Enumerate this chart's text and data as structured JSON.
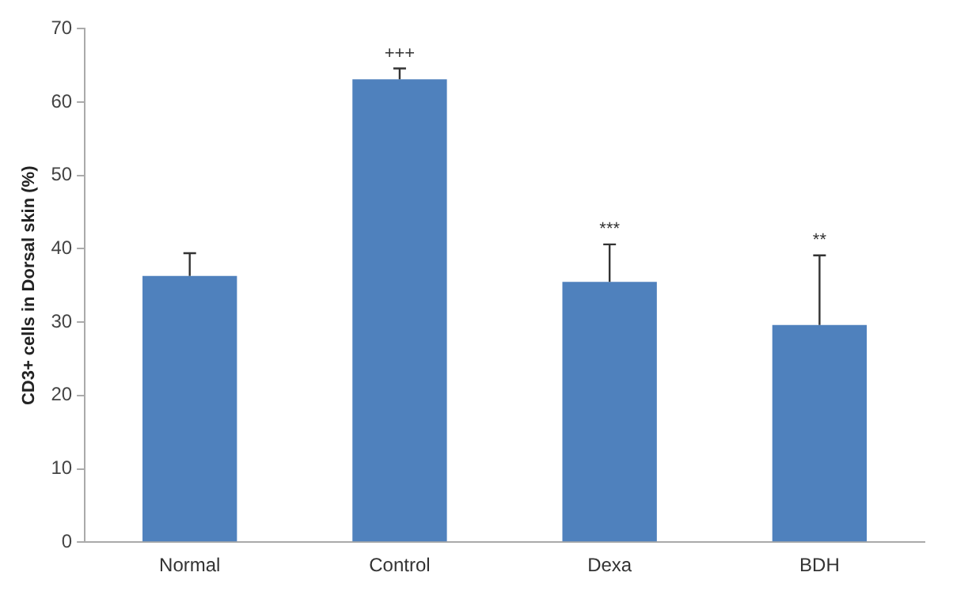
{
  "chart_data": {
    "type": "bar",
    "ylabel": "CD3+ cells in Dorsal skin (%)",
    "categories": [
      "Normal",
      "Control",
      "Dexa",
      "BDH"
    ],
    "values": [
      36.3,
      63.1,
      35.5,
      29.6
    ],
    "color": "#4f81bd",
    "errors": [
      [
        36.3,
        39.4
      ],
      [
        63.1,
        64.6
      ],
      [
        35.5,
        40.6
      ],
      [
        29.6,
        39.1
      ]
    ],
    "ylim": [
      0,
      70
    ],
    "yticks": [
      0,
      10,
      20,
      30,
      40,
      50,
      60,
      70
    ],
    "grid": false,
    "legend": false,
    "annotations": [
      {
        "text": "+++",
        "x": "Control",
        "y": 64.6
      },
      {
        "text": "***",
        "x": "Dexa",
        "y": 40.6
      },
      {
        "text": "**",
        "x": "BDH",
        "y": 39.1
      }
    ]
  }
}
